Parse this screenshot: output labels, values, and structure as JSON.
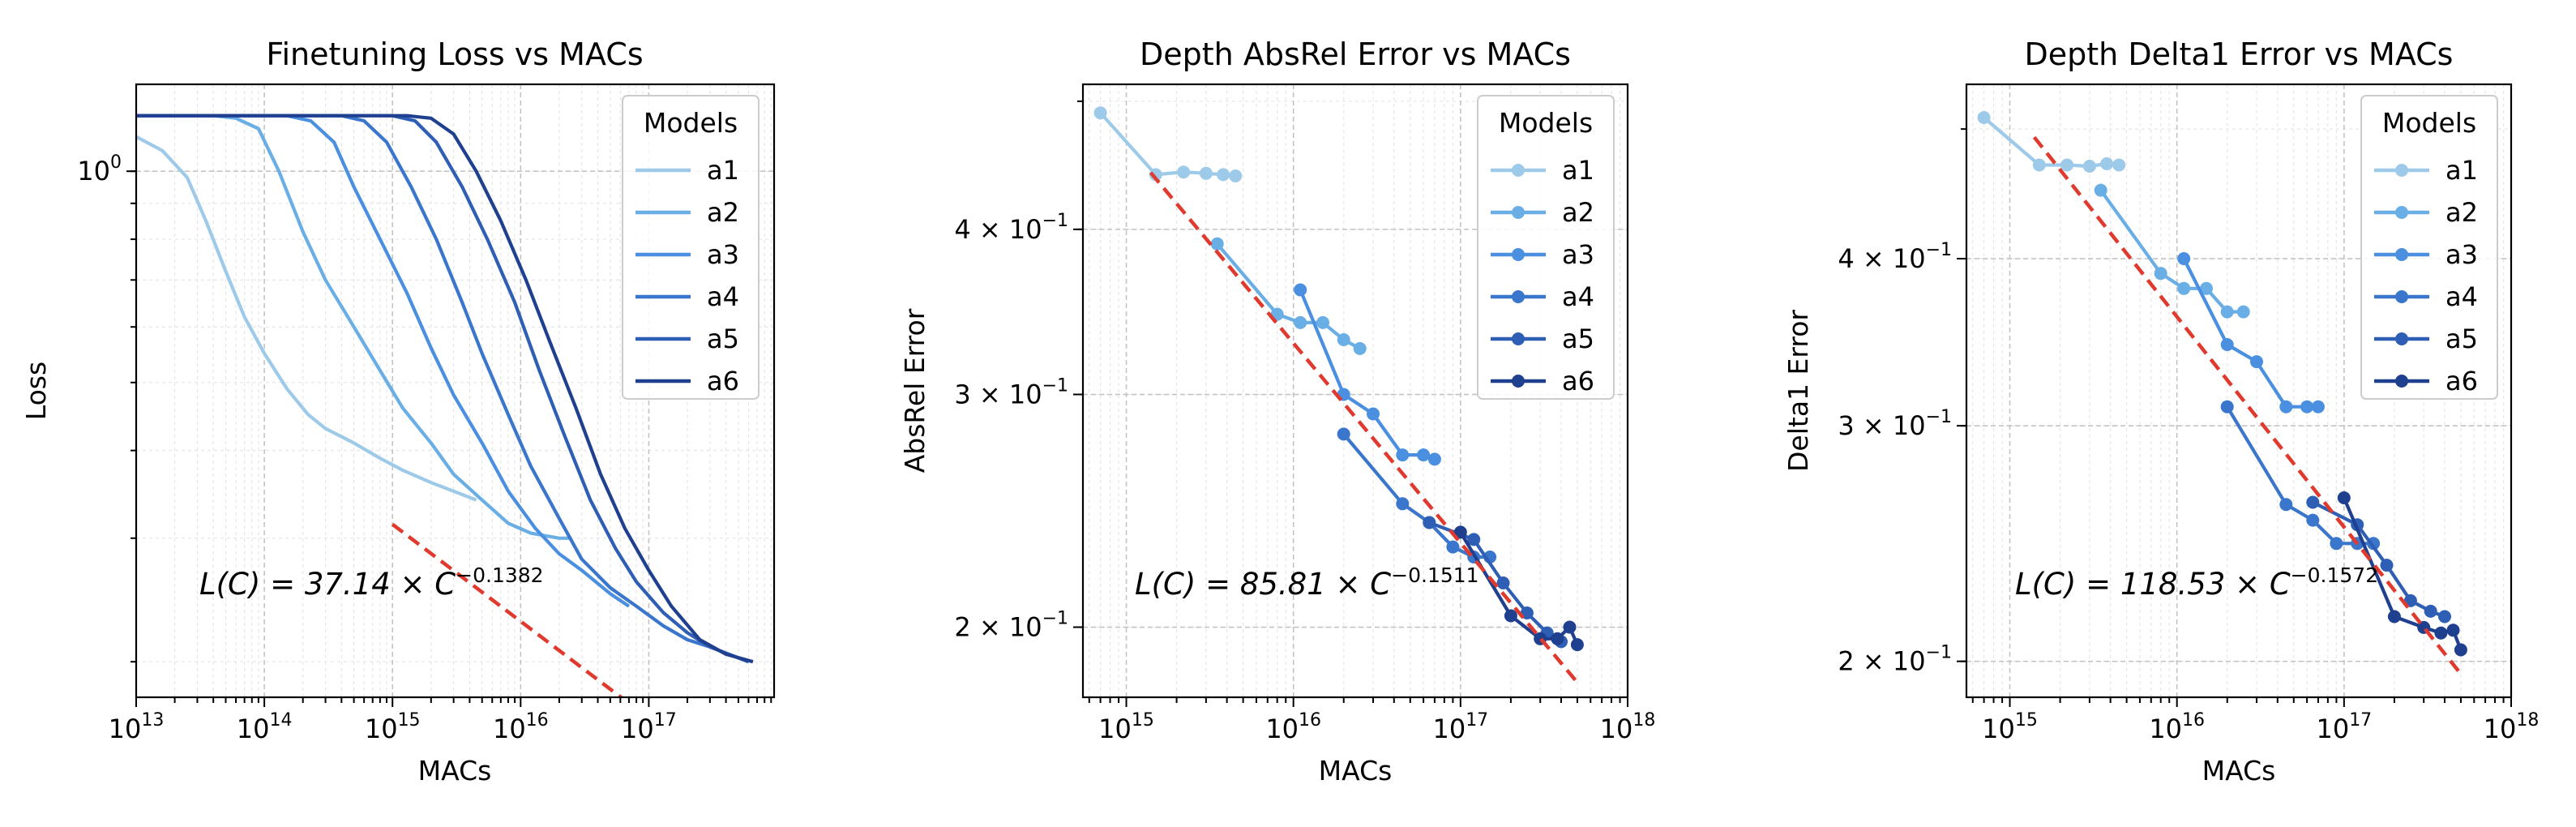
{
  "colors": {
    "a1": "#9ecae9",
    "a2": "#6aaee6",
    "a3": "#4a8fe0",
    "a4": "#3a76cc",
    "a5": "#2e5fb5",
    "a6": "#1f3f8f",
    "fit": "#e03a2e"
  },
  "chart_data": [
    {
      "type": "line",
      "title": "Finetuning Loss vs MACs",
      "xlabel": "MACs",
      "ylabel": "Loss",
      "xscale": "log",
      "yscale": "log",
      "xlim": [
        10000000000000.0,
        9.5e+17
      ],
      "ylim": [
        0.178,
        1.33
      ],
      "xticks": [
        {
          "base": "10",
          "exp": "13"
        },
        {
          "base": "10",
          "exp": "14"
        },
        {
          "base": "10",
          "exp": "15"
        },
        {
          "base": "10",
          "exp": "16"
        },
        {
          "base": "10",
          "exp": "17"
        }
      ],
      "yticks": [
        {
          "value": 1.0,
          "base": "10",
          "exp": "0"
        }
      ],
      "legend": {
        "title": "Models",
        "position": "top-right"
      },
      "series": [
        {
          "name": "a1",
          "points": [
            [
              10000000000000.0,
              1.12
            ],
            [
              16000000000000.0,
              1.07
            ],
            [
              25000000000000.0,
              0.98
            ],
            [
              35000000000000.0,
              0.85
            ],
            [
              50000000000000.0,
              0.72
            ],
            [
              70000000000000.0,
              0.62
            ],
            [
              100000000000000.0,
              0.55
            ],
            [
              150000000000000.0,
              0.49
            ],
            [
              220000000000000.0,
              0.45
            ],
            [
              300000000000000.0,
              0.43
            ],
            [
              500000000000000.0,
              0.41
            ],
            [
              800000000000000.0,
              0.39
            ],
            [
              1200000000000000.0,
              0.375
            ],
            [
              2000000000000000.0,
              0.36
            ],
            [
              3000000000000000.0,
              0.35
            ],
            [
              4500000000000000.0,
              0.34
            ]
          ]
        },
        {
          "name": "a2",
          "points": [
            [
              10000000000000.0,
              1.2
            ],
            [
              40000000000000.0,
              1.2
            ],
            [
              60000000000000.0,
              1.19
            ],
            [
              90000000000000.0,
              1.15
            ],
            [
              130000000000000.0,
              1.0
            ],
            [
              200000000000000.0,
              0.82
            ],
            [
              300000000000000.0,
              0.7
            ],
            [
              500000000000000.0,
              0.6
            ],
            [
              800000000000000.0,
              0.52
            ],
            [
              1200000000000000.0,
              0.46
            ],
            [
              2000000000000000.0,
              0.41
            ],
            [
              3000000000000000.0,
              0.37
            ],
            [
              5000000000000000.0,
              0.34
            ],
            [
              8000000000000000.0,
              0.315
            ],
            [
              1.2e+16,
              0.305
            ],
            [
              2e+16,
              0.3
            ],
            [
              2.5e+16,
              0.3
            ]
          ]
        },
        {
          "name": "a3",
          "points": [
            [
              10000000000000.0,
              1.2
            ],
            [
              150000000000000.0,
              1.2
            ],
            [
              230000000000000.0,
              1.18
            ],
            [
              350000000000000.0,
              1.1
            ],
            [
              500000000000000.0,
              0.95
            ],
            [
              800000000000000.0,
              0.8
            ],
            [
              1300000000000000.0,
              0.67
            ],
            [
              2000000000000000.0,
              0.56
            ],
            [
              3000000000000000.0,
              0.48
            ],
            [
              5000000000000000.0,
              0.41
            ],
            [
              8000000000000000.0,
              0.35
            ],
            [
              1.3e+16,
              0.31
            ],
            [
              2e+16,
              0.285
            ],
            [
              3e+16,
              0.27
            ],
            [
              5e+16,
              0.25
            ],
            [
              7e+16,
              0.24
            ]
          ]
        },
        {
          "name": "a4",
          "points": [
            [
              10000000000000.0,
              1.2
            ],
            [
              400000000000000.0,
              1.2
            ],
            [
              600000000000000.0,
              1.18
            ],
            [
              900000000000000.0,
              1.1
            ],
            [
              1400000000000000.0,
              0.95
            ],
            [
              2200000000000000.0,
              0.8
            ],
            [
              3500000000000000.0,
              0.65
            ],
            [
              5000000000000000.0,
              0.55
            ],
            [
              8000000000000000.0,
              0.45
            ],
            [
              1.2e+16,
              0.38
            ],
            [
              2e+16,
              0.32
            ],
            [
              3e+16,
              0.28
            ],
            [
              5e+16,
              0.255
            ],
            [
              8e+16,
              0.24
            ],
            [
              1.3e+17,
              0.225
            ],
            [
              2e+17,
              0.215
            ],
            [
              3e+17,
              0.21
            ],
            [
              6e+17,
              0.2
            ]
          ]
        },
        {
          "name": "a5",
          "points": [
            [
              10000000000000.0,
              1.2
            ],
            [
              1000000000000000.0,
              1.2
            ],
            [
              1500000000000000.0,
              1.18
            ],
            [
              2200000000000000.0,
              1.1
            ],
            [
              3500000000000000.0,
              0.95
            ],
            [
              5500000000000000.0,
              0.8
            ],
            [
              9000000000000000.0,
              0.65
            ],
            [
              1.4e+16,
              0.52
            ],
            [
              2.2e+16,
              0.42
            ],
            [
              3.5e+16,
              0.34
            ],
            [
              5.5e+16,
              0.29
            ],
            [
              8e+16,
              0.26
            ],
            [
              1.3e+17,
              0.235
            ],
            [
              2e+17,
              0.22
            ],
            [
              3e+17,
              0.21
            ],
            [
              6e+17,
              0.2
            ]
          ]
        },
        {
          "name": "a6",
          "points": [
            [
              10000000000000.0,
              1.2
            ],
            [
              1300000000000000.0,
              1.2
            ],
            [
              2000000000000000.0,
              1.19
            ],
            [
              3000000000000000.0,
              1.13
            ],
            [
              4500000000000000.0,
              1.0
            ],
            [
              7000000000000000.0,
              0.85
            ],
            [
              1.1e+16,
              0.7
            ],
            [
              1.7e+16,
              0.57
            ],
            [
              2.7e+16,
              0.46
            ],
            [
              4.2e+16,
              0.37
            ],
            [
              6.5e+16,
              0.31
            ],
            [
              1e+17,
              0.27
            ],
            [
              1.5e+17,
              0.24
            ],
            [
              2.5e+17,
              0.215
            ],
            [
              4e+17,
              0.205
            ],
            [
              6.5e+17,
              0.2
            ]
          ]
        }
      ],
      "fit": {
        "coef": 37.14,
        "exponent": -0.1382,
        "xrange": [
          1000000000000000.0,
          5.5e+17
        ]
      },
      "annotation": {
        "lhs": "L(C) = 37.14 × C",
        "exp": "−0.1382"
      }
    },
    {
      "type": "line",
      "title": "Depth AbsRel Error vs MACs",
      "xlabel": "MACs",
      "ylabel": "AbsRel Error",
      "xscale": "log",
      "yscale": "log",
      "xlim": [
        550000000000000.0,
        1e+18
      ],
      "ylim": [
        0.177,
        0.515
      ],
      "xticks": [
        {
          "base": "10",
          "exp": "15"
        },
        {
          "base": "10",
          "exp": "16"
        },
        {
          "base": "10",
          "exp": "17"
        },
        {
          "base": "10",
          "exp": "18"
        }
      ],
      "yticks": [
        {
          "value": 0.2,
          "base": "2 × 10",
          "exp": "−1"
        },
        {
          "value": 0.3,
          "base": "3 × 10",
          "exp": "−1"
        },
        {
          "value": 0.4,
          "base": "4 × 10",
          "exp": "−1"
        }
      ],
      "legend": {
        "title": "Models",
        "position": "top-right"
      },
      "series": [
        {
          "name": "a1",
          "points": [
            [
              700000000000000.0,
              0.49
            ],
            [
              1500000000000000.0,
              0.44
            ],
            [
              2200000000000000.0,
              0.442
            ],
            [
              3000000000000000.0,
              0.441
            ],
            [
              3800000000000000.0,
              0.44
            ],
            [
              4500000000000000.0,
              0.439
            ]
          ]
        },
        {
          "name": "a2",
          "points": [
            [
              3500000000000000.0,
              0.39
            ],
            [
              8000000000000000.0,
              0.345
            ],
            [
              1.1e+16,
              0.34
            ],
            [
              1.5e+16,
              0.34
            ],
            [
              2e+16,
              0.33
            ],
            [
              2.5e+16,
              0.325
            ]
          ]
        },
        {
          "name": "a3",
          "points": [
            [
              1.1e+16,
              0.36
            ],
            [
              2e+16,
              0.3
            ],
            [
              3e+16,
              0.29
            ],
            [
              4.5e+16,
              0.27
            ],
            [
              6e+16,
              0.27
            ],
            [
              7e+16,
              0.268
            ]
          ]
        },
        {
          "name": "a4",
          "points": [
            [
              2e+16,
              0.28
            ],
            [
              4.5e+16,
              0.248
            ],
            [
              6.5e+16,
              0.24
            ],
            [
              9e+16,
              0.23
            ],
            [
              1.2e+17,
              0.226
            ],
            [
              1.5e+17,
              0.226
            ]
          ]
        },
        {
          "name": "a5",
          "points": [
            [
              6.5e+16,
              0.24
            ],
            [
              1.2e+17,
              0.233
            ],
            [
              1.8e+17,
              0.216
            ],
            [
              2.5e+17,
              0.205
            ],
            [
              3.3e+17,
              0.198
            ],
            [
              4e+17,
              0.195
            ]
          ]
        },
        {
          "name": "a6",
          "points": [
            [
              1e+17,
              0.236
            ],
            [
              2e+17,
              0.204
            ],
            [
              3e+17,
              0.196
            ],
            [
              3.8e+17,
              0.196
            ],
            [
              4.5e+17,
              0.2
            ],
            [
              5e+17,
              0.194
            ]
          ]
        }
      ],
      "fit": {
        "coef": 85.81,
        "exponent": -0.1511,
        "xrange": [
          1400000000000000.0,
          5e+17
        ]
      },
      "annotation": {
        "lhs": "L(C) = 85.81 × C",
        "exp": "−0.1511"
      }
    },
    {
      "type": "line",
      "title": "Depth Delta1 Error vs MACs",
      "xlabel": "MACs",
      "ylabel": "Delta1 Error",
      "xscale": "log",
      "yscale": "log",
      "xlim": [
        550000000000000.0,
        1e+18
      ],
      "ylim": [
        0.188,
        0.54
      ],
      "xticks": [
        {
          "base": "10",
          "exp": "15"
        },
        {
          "base": "10",
          "exp": "16"
        },
        {
          "base": "10",
          "exp": "17"
        },
        {
          "base": "10",
          "exp": "18"
        }
      ],
      "yticks": [
        {
          "value": 0.2,
          "base": "2 × 10",
          "exp": "−1"
        },
        {
          "value": 0.3,
          "base": "3 × 10",
          "exp": "−1"
        },
        {
          "value": 0.4,
          "base": "4 × 10",
          "exp": "−1"
        }
      ],
      "legend": {
        "title": "Models",
        "position": "top-right"
      },
      "series": [
        {
          "name": "a1",
          "points": [
            [
              700000000000000.0,
              0.51
            ],
            [
              1500000000000000.0,
              0.47
            ],
            [
              2200000000000000.0,
              0.47
            ],
            [
              3000000000000000.0,
              0.469
            ],
            [
              3800000000000000.0,
              0.471
            ],
            [
              4500000000000000.0,
              0.47
            ]
          ]
        },
        {
          "name": "a2",
          "points": [
            [
              3500000000000000.0,
              0.45
            ],
            [
              8000000000000000.0,
              0.39
            ],
            [
              1.1e+16,
              0.38
            ],
            [
              1.5e+16,
              0.38
            ],
            [
              2e+16,
              0.365
            ],
            [
              2.5e+16,
              0.365
            ]
          ]
        },
        {
          "name": "a3",
          "points": [
            [
              1.1e+16,
              0.4
            ],
            [
              2e+16,
              0.345
            ],
            [
              3e+16,
              0.335
            ],
            [
              4.5e+16,
              0.31
            ],
            [
              6e+16,
              0.31
            ],
            [
              7e+16,
              0.31
            ]
          ]
        },
        {
          "name": "a4",
          "points": [
            [
              2e+16,
              0.31
            ],
            [
              4.5e+16,
              0.262
            ],
            [
              6.5e+16,
              0.255
            ],
            [
              9e+16,
              0.245
            ],
            [
              1.2e+17,
              0.245
            ],
            [
              1.5e+17,
              0.245
            ]
          ]
        },
        {
          "name": "a5",
          "points": [
            [
              6.5e+16,
              0.263
            ],
            [
              1.2e+17,
              0.253
            ],
            [
              1.8e+17,
              0.236
            ],
            [
              2.5e+17,
              0.222
            ],
            [
              3.3e+17,
              0.218
            ],
            [
              4e+17,
              0.216
            ]
          ]
        },
        {
          "name": "a6",
          "points": [
            [
              1e+17,
              0.265
            ],
            [
              2e+17,
              0.216
            ],
            [
              3e+17,
              0.212
            ],
            [
              3.8e+17,
              0.21
            ],
            [
              4.5e+17,
              0.211
            ],
            [
              5e+17,
              0.204
            ]
          ]
        }
      ],
      "fit": {
        "coef": 118.53,
        "exponent": -0.1572,
        "xrange": [
          1400000000000000.0,
          5e+17
        ]
      },
      "annotation": {
        "lhs": "L(C) = 118.53 × C",
        "exp": "−0.1572"
      }
    }
  ]
}
